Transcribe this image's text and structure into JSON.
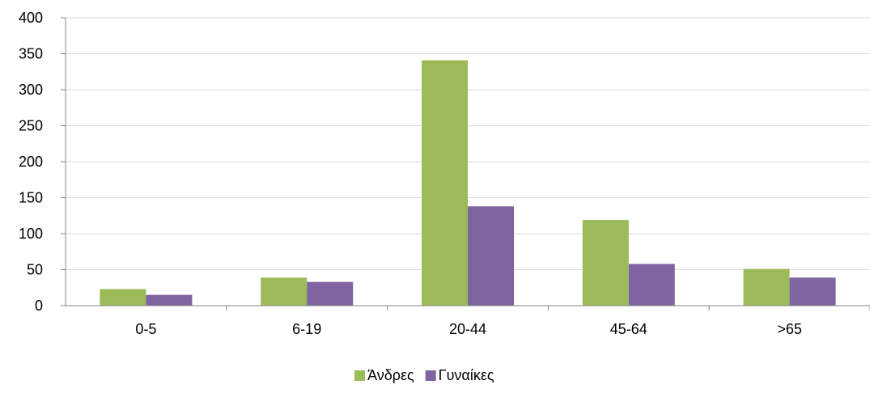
{
  "chart_data": {
    "type": "bar",
    "categories": [
      "0-5",
      "6-19",
      "20-44",
      "45-64",
      ">65"
    ],
    "series": [
      {
        "name": "Άνδρες",
        "color": "#9BBB59",
        "values": [
          23,
          39,
          341,
          119,
          51
        ]
      },
      {
        "name": "Γυναίκες",
        "color": "#8064A2",
        "values": [
          15,
          33,
          138,
          58,
          39
        ]
      }
    ],
    "yticks": [
      "0",
      "50",
      "100",
      "150",
      "200",
      "250",
      "300",
      "350",
      "400"
    ],
    "ylim": [
      0,
      400
    ],
    "grid": true,
    "legend_position": "bottom",
    "title": "",
    "xlabel": "",
    "ylabel": ""
  }
}
